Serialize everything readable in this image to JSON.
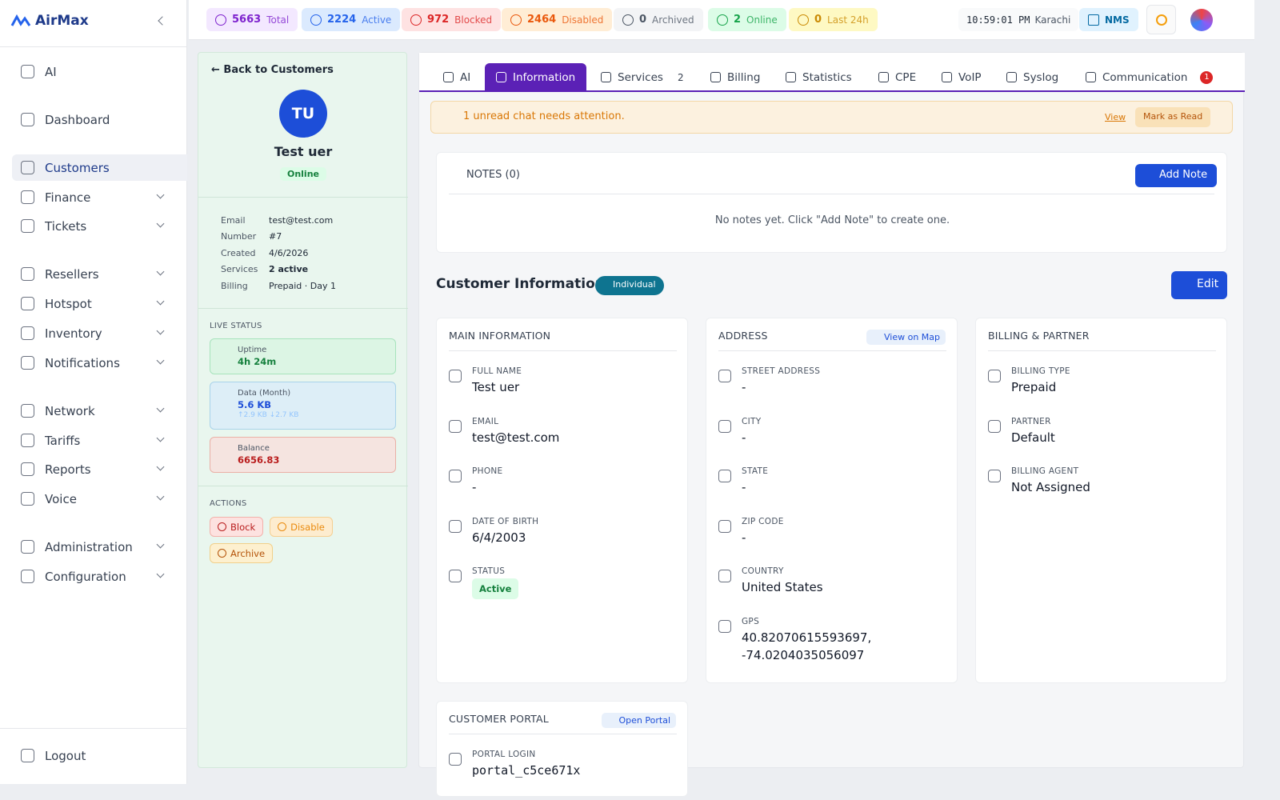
{
  "sidebar": {
    "brand": "AirMax",
    "nav": [
      "AI",
      "Dashboard",
      "Customers",
      "Finance",
      "Tickets",
      "Resellers",
      "Hotspot",
      "Inventory",
      "Notifications",
      "Network",
      "Tariffs",
      "Reports",
      "Voice",
      "Administration",
      "Configuration"
    ],
    "logout": "Logout"
  },
  "topbar": {
    "stats": [
      {
        "value": "5663",
        "label": "Total"
      },
      {
        "value": "2224",
        "label": "Active"
      },
      {
        "value": "972",
        "label": "Blocked"
      },
      {
        "value": "2464",
        "label": "Disabled"
      },
      {
        "value": "0",
        "label": "Archived"
      },
      {
        "value": "2",
        "label": "Online"
      },
      {
        "value": "0",
        "label": "Last 24h"
      }
    ],
    "clock": "10:59:01 PM",
    "timezone": "Karachi",
    "nms": "NMS"
  },
  "profile": {
    "back": "Back to Customers",
    "initials": "TU",
    "name": "Test uer",
    "status": "Online",
    "details": [
      {
        "label": "Email",
        "value": "test@test.com"
      },
      {
        "label": "Number",
        "value": "#7"
      },
      {
        "label": "Created",
        "value": "4/6/2026"
      },
      {
        "label": "Services",
        "value": "2 active"
      },
      {
        "label": "Billing",
        "value": "Prepaid · Day 1"
      }
    ],
    "live_status_title": "LIVE STATUS",
    "uptime": {
      "label": "Uptime",
      "value": "4h 24m"
    },
    "data": {
      "label": "Data (Month)",
      "value": "5.6 KB",
      "up": "↑2.9 KB",
      "down": "↓2.7 KB"
    },
    "balance": {
      "label": "Balance",
      "value": "6656.83"
    },
    "actions_title": "ACTIONS",
    "actions": [
      "Block",
      "Disable",
      "Archive"
    ]
  },
  "tabs": [
    {
      "label": "AI"
    },
    {
      "label": "Information"
    },
    {
      "label": "Services",
      "count": "2"
    },
    {
      "label": "Billing"
    },
    {
      "label": "Statistics"
    },
    {
      "label": "CPE"
    },
    {
      "label": "VoIP"
    },
    {
      "label": "Syslog"
    },
    {
      "label": "Communication",
      "badge": "1"
    }
  ],
  "alert": {
    "text": "1 unread chat needs attention.",
    "view": "View",
    "mark": "Mark as Read"
  },
  "notes": {
    "title": "NOTES (0)",
    "add": "Add Note",
    "empty": "No notes yet. Click \"Add Note\" to create one."
  },
  "info": {
    "title": "Customer Information",
    "badge": "Individual",
    "edit": "Edit",
    "cards": [
      {
        "title": "MAIN INFORMATION",
        "fields": [
          {
            "label": "FULL NAME",
            "value": "Test uer"
          },
          {
            "label": "EMAIL",
            "value": "test@test.com"
          },
          {
            "label": "PHONE",
            "value": "-"
          },
          {
            "label": "DATE OF BIRTH",
            "value": "6/4/2003"
          },
          {
            "label": "STATUS",
            "value": "Active"
          }
        ]
      },
      {
        "title": "ADDRESS",
        "link": "View on Map",
        "fields": [
          {
            "label": "STREET ADDRESS",
            "value": "-"
          },
          {
            "label": "CITY",
            "value": "-"
          },
          {
            "label": "STATE",
            "value": "-"
          },
          {
            "label": "ZIP CODE",
            "value": "-"
          },
          {
            "label": "COUNTRY",
            "value": "United States"
          },
          {
            "label": "GPS",
            "value": "40.82070615593697, -74.0204035056097"
          }
        ]
      },
      {
        "title": "BILLING & PARTNER",
        "fields": [
          {
            "label": "BILLING TYPE",
            "value": "Prepaid"
          },
          {
            "label": "PARTNER",
            "value": "Default"
          },
          {
            "label": "BILLING AGENT",
            "value": "Not Assigned"
          }
        ]
      }
    ],
    "portal": {
      "title": "CUSTOMER PORTAL",
      "link": "Open Portal",
      "fields": [
        {
          "label": "PORTAL LOGIN",
          "value": "portal_c5ce671x"
        }
      ]
    }
  }
}
